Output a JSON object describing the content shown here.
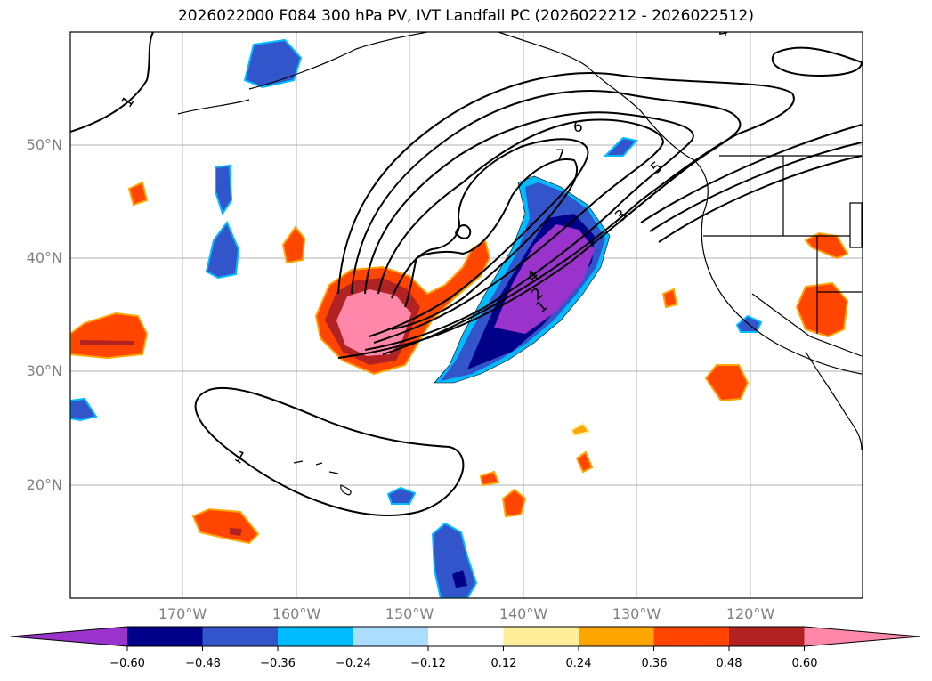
{
  "title": "2026022000 F084 300 hPa PV, IVT Landfall PC (2026022212 - 2026022512)",
  "lat_labels": [
    "50°N",
    "40°N",
    "30°N",
    "20°N"
  ],
  "lon_labels": [
    "170°W",
    "160°W",
    "150°W",
    "140°W",
    "130°W",
    "120°W"
  ],
  "contour_labels": [
    "1",
    "1",
    "1",
    "2",
    "3",
    "4",
    "4",
    "5",
    "6",
    "7"
  ],
  "colorbar": {
    "ticks": [
      "−0.60",
      "−0.48",
      "−0.36",
      "−0.24",
      "−0.12",
      "0.12",
      "0.24",
      "0.36",
      "0.48",
      "0.60"
    ],
    "colors": [
      "#9933cc",
      "#000088",
      "#3355cc",
      "#00bbff",
      "#aaddff",
      "#ffffff",
      "#ffee99",
      "#ffa500",
      "#ff4500",
      "#b22222",
      "#ff88aa"
    ]
  }
}
